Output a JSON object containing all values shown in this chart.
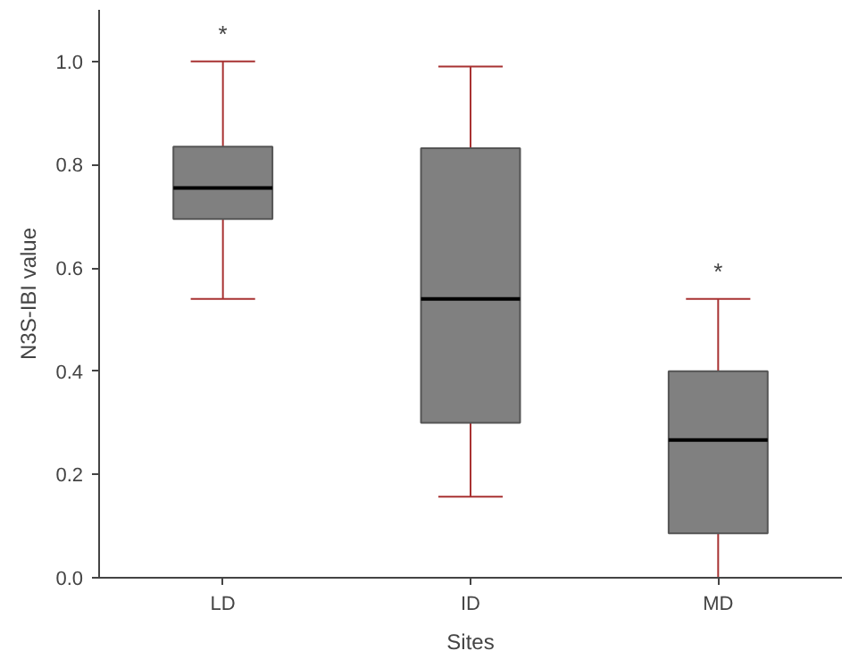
{
  "chart_data": {
    "type": "box",
    "xlabel": "Sites",
    "ylabel": "N3S-IBI value",
    "categories": [
      "LD",
      "ID",
      "MD"
    ],
    "series": [
      {
        "color": "#808080",
        "boxes": [
          {
            "low": 0.54,
            "q1": 0.695,
            "median": 0.755,
            "q3": 0.835,
            "high": 1.0
          },
          {
            "low": 0.157,
            "q1": 0.3,
            "median": 0.54,
            "q3": 0.832,
            "high": 0.99
          },
          {
            "low": 0.0,
            "q1": 0.086,
            "median": 0.267,
            "q3": 0.4,
            "high": 0.54
          }
        ]
      }
    ],
    "ylim": [
      0,
      1.1
    ],
    "yticks": [
      {
        "value": 0,
        "label": "0.0"
      },
      0.2,
      0.4,
      0.6,
      0.8,
      {
        "value": 1,
        "label": "1.0"
      }
    ],
    "grid": false,
    "annotations": [
      "*",
      "*"
    ]
  }
}
